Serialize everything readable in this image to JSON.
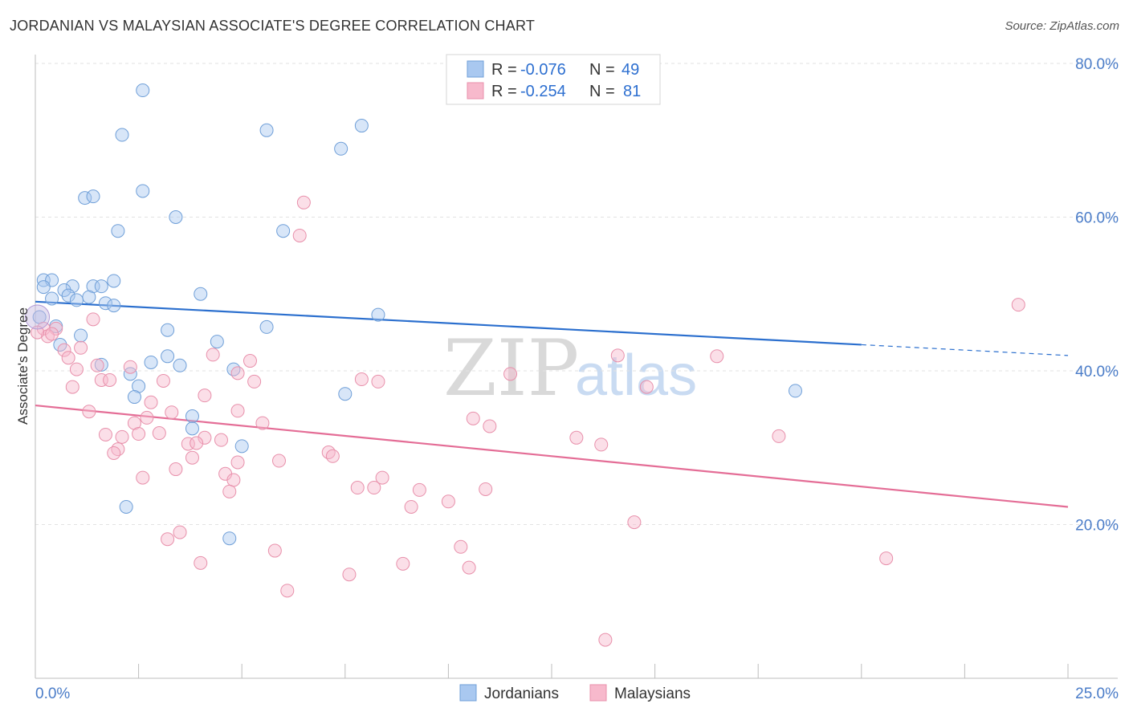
{
  "header": {
    "title": "JORDANIAN VS MALAYSIAN ASSOCIATE'S DEGREE CORRELATION CHART",
    "source": "Source: ZipAtlas.com"
  },
  "legend": {
    "rows": [
      {
        "r_label": "R =",
        "r_value": "-0.076",
        "n_label": "N =",
        "n_value": "49",
        "color": "#a9c8f0"
      },
      {
        "r_label": "R =",
        "r_value": "-0.254",
        "n_label": "N =",
        "n_value": "81",
        "color": "#f7b9cc"
      }
    ]
  },
  "watermark": {
    "zip": "ZIP",
    "atlas": "atlas"
  },
  "chart_data": {
    "type": "scatter",
    "title": "JORDANIAN VS MALAYSIAN ASSOCIATE'S DEGREE CORRELATION CHART",
    "xlabel": "",
    "ylabel": "Associate's Degree",
    "xlim": [
      0,
      25
    ],
    "ylim": [
      0,
      80
    ],
    "x_tick_labels": [
      "0.0%",
      "25.0%"
    ],
    "y_ticks": [
      20,
      40,
      60,
      80
    ],
    "y_tick_labels": [
      "20.0%",
      "40.0%",
      "60.0%",
      "80.0%"
    ],
    "grid": true,
    "legend_position": "top-center",
    "series": [
      {
        "name": "Jordanians",
        "color": "#a9c8f0",
        "stroke": "#6f9fd8",
        "trend_color": "#2b6fce",
        "trend": {
          "x0": 0,
          "y0": 49.0,
          "x1": 20,
          "y1": 43.4,
          "dash_to_x": 25,
          "dash_to_y": 42.0
        },
        "points": [
          [
            2.6,
            76.5
          ],
          [
            2.1,
            70.7
          ],
          [
            5.6,
            71.3
          ],
          [
            7.9,
            71.9
          ],
          [
            7.4,
            68.9
          ],
          [
            2.6,
            63.4
          ],
          [
            1.2,
            62.5
          ],
          [
            1.4,
            62.7
          ],
          [
            3.4,
            60.0
          ],
          [
            2.0,
            58.2
          ],
          [
            6.0,
            58.2
          ],
          [
            0.2,
            51.8
          ],
          [
            0.4,
            51.8
          ],
          [
            1.9,
            51.7
          ],
          [
            0.2,
            50.9
          ],
          [
            0.9,
            51.0
          ],
          [
            1.4,
            51.0
          ],
          [
            1.6,
            51.0
          ],
          [
            0.7,
            50.5
          ],
          [
            0.8,
            49.8
          ],
          [
            0.4,
            49.4
          ],
          [
            1.3,
            49.6
          ],
          [
            1.0,
            49.2
          ],
          [
            1.7,
            48.8
          ],
          [
            1.9,
            48.5
          ],
          [
            4.0,
            50.0
          ],
          [
            8.3,
            47.3
          ],
          [
            0.1,
            47.0
          ],
          [
            0.5,
            45.8
          ],
          [
            5.6,
            45.7
          ],
          [
            3.2,
            45.3
          ],
          [
            1.1,
            44.6
          ],
          [
            4.4,
            43.8
          ],
          [
            0.6,
            43.4
          ],
          [
            3.2,
            41.9
          ],
          [
            2.8,
            41.1
          ],
          [
            1.6,
            40.8
          ],
          [
            3.5,
            40.7
          ],
          [
            4.8,
            40.2
          ],
          [
            2.3,
            39.6
          ],
          [
            2.5,
            38.0
          ],
          [
            7.5,
            37.0
          ],
          [
            18.4,
            37.4
          ],
          [
            2.4,
            36.6
          ],
          [
            3.8,
            34.1
          ],
          [
            3.8,
            32.5
          ],
          [
            5.0,
            30.2
          ],
          [
            2.2,
            22.3
          ],
          [
            4.7,
            18.2
          ]
        ]
      },
      {
        "name": "Malaysians",
        "color": "#f7b9cc",
        "stroke": "#e890ab",
        "trend_color": "#e46d96",
        "trend": {
          "x0": 0,
          "y0": 35.5,
          "x1": 25,
          "y1": 22.3
        },
        "points": [
          [
            6.5,
            61.9
          ],
          [
            6.4,
            57.6
          ],
          [
            23.8,
            48.6
          ],
          [
            1.4,
            46.7
          ],
          [
            0.2,
            45.5
          ],
          [
            0.5,
            45.5
          ],
          [
            0.3,
            44.5
          ],
          [
            0.4,
            44.8
          ],
          [
            0.7,
            42.7
          ],
          [
            1.1,
            43.0
          ],
          [
            0.8,
            41.7
          ],
          [
            4.3,
            42.1
          ],
          [
            14.1,
            42.0
          ],
          [
            16.5,
            41.9
          ],
          [
            5.2,
            41.3
          ],
          [
            2.3,
            40.5
          ],
          [
            1.0,
            40.2
          ],
          [
            1.5,
            40.7
          ],
          [
            4.9,
            39.7
          ],
          [
            11.5,
            39.6
          ],
          [
            7.9,
            38.9
          ],
          [
            8.3,
            38.6
          ],
          [
            1.6,
            38.8
          ],
          [
            1.8,
            38.8
          ],
          [
            3.1,
            38.7
          ],
          [
            5.3,
            38.6
          ],
          [
            0.9,
            37.9
          ],
          [
            14.8,
            37.9
          ],
          [
            4.1,
            36.8
          ],
          [
            2.8,
            35.9
          ],
          [
            1.3,
            34.7
          ],
          [
            3.3,
            34.6
          ],
          [
            4.9,
            34.8
          ],
          [
            2.7,
            33.9
          ],
          [
            10.6,
            33.8
          ],
          [
            2.4,
            33.2
          ],
          [
            5.5,
            33.2
          ],
          [
            11.0,
            32.8
          ],
          [
            1.7,
            31.7
          ],
          [
            2.5,
            31.8
          ],
          [
            3.0,
            31.9
          ],
          [
            2.1,
            31.4
          ],
          [
            4.1,
            31.3
          ],
          [
            13.1,
            31.3
          ],
          [
            18.0,
            31.5
          ],
          [
            4.5,
            31.0
          ],
          [
            3.7,
            30.5
          ],
          [
            3.9,
            30.6
          ],
          [
            13.7,
            30.4
          ],
          [
            2.0,
            29.8
          ],
          [
            1.9,
            29.3
          ],
          [
            7.1,
            29.4
          ],
          [
            7.2,
            28.9
          ],
          [
            3.8,
            28.7
          ],
          [
            4.9,
            28.1
          ],
          [
            5.9,
            28.3
          ],
          [
            3.4,
            27.2
          ],
          [
            4.6,
            26.6
          ],
          [
            2.6,
            26.1
          ],
          [
            4.8,
            25.8
          ],
          [
            8.4,
            26.1
          ],
          [
            7.8,
            24.8
          ],
          [
            8.2,
            24.8
          ],
          [
            9.3,
            24.5
          ],
          [
            10.9,
            24.6
          ],
          [
            4.7,
            24.3
          ],
          [
            10.0,
            23.0
          ],
          [
            9.1,
            22.3
          ],
          [
            14.5,
            20.3
          ],
          [
            3.5,
            19.0
          ],
          [
            3.2,
            18.1
          ],
          [
            10.3,
            17.1
          ],
          [
            5.8,
            16.6
          ],
          [
            20.6,
            15.6
          ],
          [
            4.0,
            15.0
          ],
          [
            8.9,
            14.9
          ],
          [
            10.5,
            14.4
          ],
          [
            7.6,
            13.5
          ],
          [
            6.1,
            11.4
          ],
          [
            13.8,
            5.0
          ],
          [
            0.05,
            45.0
          ]
        ]
      }
    ]
  }
}
